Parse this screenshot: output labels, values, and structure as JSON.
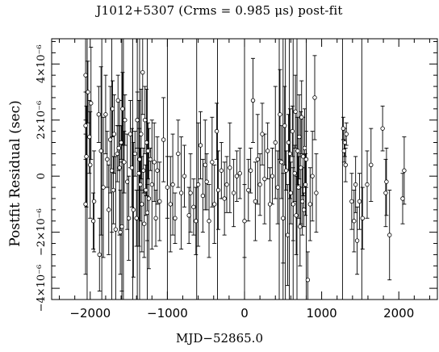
{
  "chart_data": {
    "type": "scatter",
    "title": "J1012+5307 (Crms = 0.985 μs) post-fit",
    "xlabel": "MJD−52865.0",
    "ylabel": "Postfit Residual (sec)",
    "xlim": [
      -2500,
      2500
    ],
    "ylim": [
      -4.4e-06,
      4.9e-06
    ],
    "x_ticks": [
      -2000,
      -1000,
      0,
      1000,
      2000
    ],
    "x_tick_labels": [
      "−2000",
      "−1000",
      "0",
      "1000",
      "2000"
    ],
    "y_ticks": [
      -4e-06,
      -2e-06,
      0,
      2e-06,
      4e-06
    ],
    "y_tick_labels": [
      "−4×10⁻⁶",
      "−2×10⁻⁶",
      "0",
      "2×10⁻⁶",
      "4×10⁻⁶"
    ],
    "grid": false,
    "marker": "open-circle",
    "points": [
      {
        "x": -2060,
        "y": 3.6e-06,
        "err": 1.6e-06
      },
      {
        "x": -2060,
        "y": 1.8e-06,
        "err": 1.2e-06
      },
      {
        "x": -2050,
        "y": 7e-07,
        "err": 1.8e-06
      },
      {
        "x": -2060,
        "y": -1e-06,
        "err": 2.5e-06
      },
      {
        "x": -2030,
        "y": 3e-06,
        "err": 1.1e-06
      },
      {
        "x": -2010,
        "y": 1.4e-06,
        "err": 1.3e-06
      },
      {
        "x": -2000,
        "y": 4e-07,
        "err": 1.9e-06
      },
      {
        "x": -1990,
        "y": 2.6e-06,
        "err": 2e-06
      },
      {
        "x": -1960,
        "y": -1.6e-06,
        "err": 1e-06
      },
      {
        "x": -1950,
        "y": -9e-07,
        "err": 1.8e-06
      },
      {
        "x": -1890,
        "y": 2.2e-06,
        "err": 1e-06
      },
      {
        "x": -1880,
        "y": -2.8e-06,
        "err": 1.3e-06
      },
      {
        "x": -1860,
        "y": 9e-07,
        "err": 3e-06
      },
      {
        "x": -1830,
        "y": -4e-07,
        "err": 2.5e-06
      },
      {
        "x": -1800,
        "y": 2.2e-06,
        "err": 1.4e-06
      },
      {
        "x": -1780,
        "y": 6e-07,
        "err": 1e-06
      },
      {
        "x": -1760,
        "y": -1.2e-06,
        "err": 1.6e-06
      },
      {
        "x": -1740,
        "y": 1.3e-06,
        "err": 1.9e-06
      },
      {
        "x": -1720,
        "y": 2e-07,
        "err": 2.2e-06
      },
      {
        "x": -1710,
        "y": 2.4e-06,
        "err": 1e-06
      },
      {
        "x": -1700,
        "y": -5e-07,
        "err": 1.2e-06
      },
      {
        "x": -1690,
        "y": 1.5e-06,
        "err": 1.4e-06
      },
      {
        "x": -1670,
        "y": -1.9e-06,
        "err": 2.6e-06
      },
      {
        "x": -1650,
        "y": 8e-07,
        "err": 1e-06
      },
      {
        "x": -1640,
        "y": 2.7e-06,
        "err": 9e-07
      },
      {
        "x": -1630,
        "y": 1e-06,
        "err": 8e-07
      },
      {
        "x": -1620,
        "y": 3e-07,
        "err": 2.4e-06
      },
      {
        "x": -1610,
        "y": -2e-06,
        "err": 1.5e-06
      },
      {
        "x": -1600,
        "y": 1.2e-06,
        "err": 6e-07
      },
      {
        "x": -1590,
        "y": -1.8e-06,
        "err": 2.3e-06
      },
      {
        "x": -1580,
        "y": 2.4e-06,
        "err": 1.3e-06
      },
      {
        "x": -1560,
        "y": 5e-07,
        "err": 1.1e-06
      },
      {
        "x": -1550,
        "y": 2e-06,
        "err": 9e-07
      },
      {
        "x": -1520,
        "y": -2e-07,
        "err": 1.7e-06
      },
      {
        "x": -1500,
        "y": -1.5e-06,
        "err": 1.5e-06
      },
      {
        "x": -1480,
        "y": 1.5e-06,
        "err": 1.2e-06
      },
      {
        "x": -1460,
        "y": 3e-07,
        "err": 1.4e-06
      },
      {
        "x": -1440,
        "y": -1.2e-06,
        "err": 2.4e-06
      },
      {
        "x": -1420,
        "y": 8e-07,
        "err": 8e-07
      },
      {
        "x": -1400,
        "y": -1.5e-06,
        "err": 1e-06
      },
      {
        "x": -1390,
        "y": 2e-06,
        "err": 1e-06
      },
      {
        "x": -1370,
        "y": 1e-07,
        "err": 2.6e-06
      },
      {
        "x": -1360,
        "y": 6e-07,
        "err": 1.1e-06
      },
      {
        "x": -1350,
        "y": -3e-07,
        "err": 1.3e-06
      },
      {
        "x": -1340,
        "y": 1.5e-06,
        "err": 1.6e-06
      },
      {
        "x": -1330,
        "y": -1e-06,
        "err": 1.7e-06
      },
      {
        "x": -1320,
        "y": 3.7e-06,
        "err": 1.5e-06
      },
      {
        "x": -1310,
        "y": 2e-07,
        "err": 8e-07
      },
      {
        "x": -1300,
        "y": -1.7e-06,
        "err": 1.2e-06
      },
      {
        "x": -1290,
        "y": 2e-06,
        "err": 1.2e-06
      },
      {
        "x": -1280,
        "y": -5e-07,
        "err": 9e-07
      },
      {
        "x": -1270,
        "y": 1.2e-06,
        "err": 1.9e-06
      },
      {
        "x": -1260,
        "y": -1.3e-06,
        "err": 1e-06
      },
      {
        "x": -1250,
        "y": 9e-07,
        "err": 1e-06
      },
      {
        "x": -1240,
        "y": -8e-07,
        "err": 2.5e-06
      },
      {
        "x": -1220,
        "y": 6e-07,
        "err": 4e-07
      },
      {
        "x": -1200,
        "y": -3e-07,
        "err": 2.3e-06
      },
      {
        "x": -1170,
        "y": 5e-07,
        "err": 1.4e-06
      },
      {
        "x": -1150,
        "y": -1.5e-06,
        "err": 1e-06
      },
      {
        "x": -1130,
        "y": 2e-07,
        "err": 1.2e-06
      },
      {
        "x": -1100,
        "y": -9e-07,
        "err": 1.4e-06
      },
      {
        "x": -1050,
        "y": 1.3e-06,
        "err": 1.5e-06
      },
      {
        "x": -1000,
        "y": -4e-07,
        "err": 1.1e-06
      },
      {
        "x": -960,
        "y": -1e-06,
        "err": 1.7e-06
      },
      {
        "x": -930,
        "y": -3e-07,
        "err": 1.8e-06
      },
      {
        "x": -900,
        "y": -1.5e-06,
        "err": 9e-07
      },
      {
        "x": -860,
        "y": 8e-07,
        "err": 1.2e-06
      },
      {
        "x": -820,
        "y": -6e-07,
        "err": 2e-06
      },
      {
        "x": -780,
        "y": 0.0,
        "err": 1.1e-06
      },
      {
        "x": -720,
        "y": -1.4e-06,
        "err": 1e-06
      },
      {
        "x": -700,
        "y": -6e-07,
        "err": 1.4e-06
      },
      {
        "x": -660,
        "y": -1.1e-06,
        "err": 1e-06
      },
      {
        "x": -630,
        "y": -1.6e-06,
        "err": 1.2e-06
      },
      {
        "x": -600,
        "y": -3e-07,
        "err": 2.2e-06
      },
      {
        "x": -570,
        "y": 1.1e-06,
        "err": 1.2e-06
      },
      {
        "x": -540,
        "y": -7e-07,
        "err": 1.3e-06
      },
      {
        "x": -510,
        "y": 4e-07,
        "err": 1.6e-06
      },
      {
        "x": -490,
        "y": -2e-07,
        "err": 1e-06
      },
      {
        "x": -460,
        "y": -1.6e-06,
        "err": 1.3e-06
      },
      {
        "x": -420,
        "y": 5e-07,
        "err": 1.6e-06
      },
      {
        "x": -390,
        "y": -1e-06,
        "err": 1.4e-06
      },
      {
        "x": -360,
        "y": 1.6e-06,
        "err": 1e-06
      },
      {
        "x": -340,
        "y": -5e-07,
        "err": 1.4e-06
      },
      {
        "x": -300,
        "y": 2e-07,
        "err": 1e-06
      },
      {
        "x": -260,
        "y": -8e-07,
        "err": 1.3e-06
      },
      {
        "x": -230,
        "y": -3e-07,
        "err": 1e-06
      },
      {
        "x": -190,
        "y": 3e-07,
        "err": 1.6e-06
      },
      {
        "x": -140,
        "y": -6e-07,
        "err": 1.2e-06
      },
      {
        "x": -100,
        "y": 0.0,
        "err": 9e-07
      },
      {
        "x": -60,
        "y": 1e-07,
        "err": 9e-07
      },
      {
        "x": 0,
        "y": -1.6e-06,
        "err": 1.3e-06
      },
      {
        "x": 50,
        "y": -5e-07,
        "err": 1.1e-06
      },
      {
        "x": 80,
        "y": 2e-07,
        "err": 8e-07
      },
      {
        "x": 110,
        "y": 2.7e-06,
        "err": 1.5e-06
      },
      {
        "x": 140,
        "y": -9e-07,
        "err": 1.4e-06
      },
      {
        "x": 170,
        "y": 6e-07,
        "err": 1.6e-06
      },
      {
        "x": 200,
        "y": -3e-07,
        "err": 1.1e-06
      },
      {
        "x": 230,
        "y": 1.5e-06,
        "err": 1.1e-06
      },
      {
        "x": 260,
        "y": -1e-07,
        "err": 1.6e-06
      },
      {
        "x": 300,
        "y": 9e-07,
        "err": 1e-06
      },
      {
        "x": 330,
        "y": -1e-06,
        "err": 1.3e-06
      },
      {
        "x": 360,
        "y": 0.0,
        "err": 1e-06
      },
      {
        "x": 400,
        "y": 1.2e-06,
        "err": 2e-06
      },
      {
        "x": 430,
        "y": -4e-07,
        "err": 1.3e-06
      },
      {
        "x": 460,
        "y": 2.2e-06,
        "err": 1.6e-06
      },
      {
        "x": 480,
        "y": 5e-07,
        "err": 1.3e-06
      },
      {
        "x": 500,
        "y": -1.5e-06,
        "err": 1.6e-06
      },
      {
        "x": 520,
        "y": 1.8e-06,
        "err": 1.4e-06
      },
      {
        "x": 540,
        "y": 2e-07,
        "err": 7e-07
      },
      {
        "x": 560,
        "y": -2.1e-06,
        "err": 1.8e-06
      },
      {
        "x": 570,
        "y": 1.2e-06,
        "err": 1e-06
      },
      {
        "x": 590,
        "y": 8e-07,
        "err": 1.6e-06
      },
      {
        "x": 600,
        "y": -6e-07,
        "err": 1.1e-06
      },
      {
        "x": 620,
        "y": 1.6e-06,
        "err": 9e-07
      },
      {
        "x": 630,
        "y": -1e-06,
        "err": 1.3e-06
      },
      {
        "x": 650,
        "y": 1e-07,
        "err": 1e-06
      },
      {
        "x": 660,
        "y": 2.3e-06,
        "err": 1.3e-06
      },
      {
        "x": 670,
        "y": -1.4e-06,
        "err": 1.4e-06
      },
      {
        "x": 690,
        "y": 9e-07,
        "err": 1.2e-06
      },
      {
        "x": 700,
        "y": -4e-07,
        "err": 1.1e-06
      },
      {
        "x": 710,
        "y": 1.4e-06,
        "err": 1.5e-06
      },
      {
        "x": 720,
        "y": -1.8e-06,
        "err": 1.4e-06
      },
      {
        "x": 730,
        "y": 3e-07,
        "err": 2e-06
      },
      {
        "x": 740,
        "y": 2.1e-06,
        "err": 1.3e-06
      },
      {
        "x": 750,
        "y": -9e-07,
        "err": 1.2e-06
      },
      {
        "x": 760,
        "y": 7e-07,
        "err": 1.4e-06
      },
      {
        "x": 770,
        "y": -1.2e-06,
        "err": 6e-07
      },
      {
        "x": 780,
        "y": 1e-06,
        "err": 1.4e-06
      },
      {
        "x": 790,
        "y": -3e-07,
        "err": 1.1e-06
      },
      {
        "x": 800,
        "y": 6e-07,
        "err": 1e-06
      },
      {
        "x": 820,
        "y": -3.7e-06,
        "err": 1e-06
      },
      {
        "x": 850,
        "y": -1e-06,
        "err": 1.3e-06
      },
      {
        "x": 880,
        "y": 0.0,
        "err": 1.6e-06
      },
      {
        "x": 910,
        "y": 2.8e-06,
        "err": 1.5e-06
      },
      {
        "x": 930,
        "y": -6e-07,
        "err": 1.4e-06
      },
      {
        "x": 1280,
        "y": 1.7e-06,
        "err": 4e-07
      },
      {
        "x": 1290,
        "y": 9e-07,
        "err": 4e-07
      },
      {
        "x": 1300,
        "y": 1.2e-06,
        "err": 5e-07
      },
      {
        "x": 1310,
        "y": 4e-07,
        "err": 6e-07
      },
      {
        "x": 1320,
        "y": 1.5e-06,
        "err": 4e-07
      },
      {
        "x": 1390,
        "y": -9e-07,
        "err": 1e-06
      },
      {
        "x": 1420,
        "y": -1.6e-06,
        "err": 1.1e-06
      },
      {
        "x": 1440,
        "y": -3e-07,
        "err": 1e-06
      },
      {
        "x": 1460,
        "y": -2.3e-06,
        "err": 1.2e-06
      },
      {
        "x": 1490,
        "y": -9e-07,
        "err": 1e-06
      },
      {
        "x": 1530,
        "y": -1.5e-06,
        "err": 1.1e-06
      },
      {
        "x": 1590,
        "y": -3e-07,
        "err": 1.2e-06
      },
      {
        "x": 1640,
        "y": 4e-07,
        "err": 1.3e-06
      },
      {
        "x": 1790,
        "y": 1.7e-06,
        "err": 8e-07
      },
      {
        "x": 1830,
        "y": -6e-07,
        "err": 1.2e-06
      },
      {
        "x": 1840,
        "y": -2e-07,
        "err": 1.2e-06
      },
      {
        "x": 1880,
        "y": -2.1e-06,
        "err": 1.6e-06
      },
      {
        "x": 2050,
        "y": -8e-07,
        "err": 9e-07
      },
      {
        "x": 2070,
        "y": 2e-07,
        "err": 1.2e-06
      }
    ],
    "long_error_bars": [
      {
        "x": -2040
      },
      {
        "x": -1850
      },
      {
        "x": -1720
      },
      {
        "x": -1590
      },
      {
        "x": -1570
      },
      {
        "x": -1450
      },
      {
        "x": -1390
      },
      {
        "x": -1360
      },
      {
        "x": -1260
      },
      {
        "x": -1000
      },
      {
        "x": -620
      },
      {
        "x": -350
      },
      {
        "x": 0
      },
      {
        "x": 450
      },
      {
        "x": 500
      },
      {
        "x": 530
      },
      {
        "x": 580
      },
      {
        "x": 630
      },
      {
        "x": 680
      },
      {
        "x": 800
      },
      {
        "x": 1270
      },
      {
        "x": 1520
      }
    ]
  }
}
